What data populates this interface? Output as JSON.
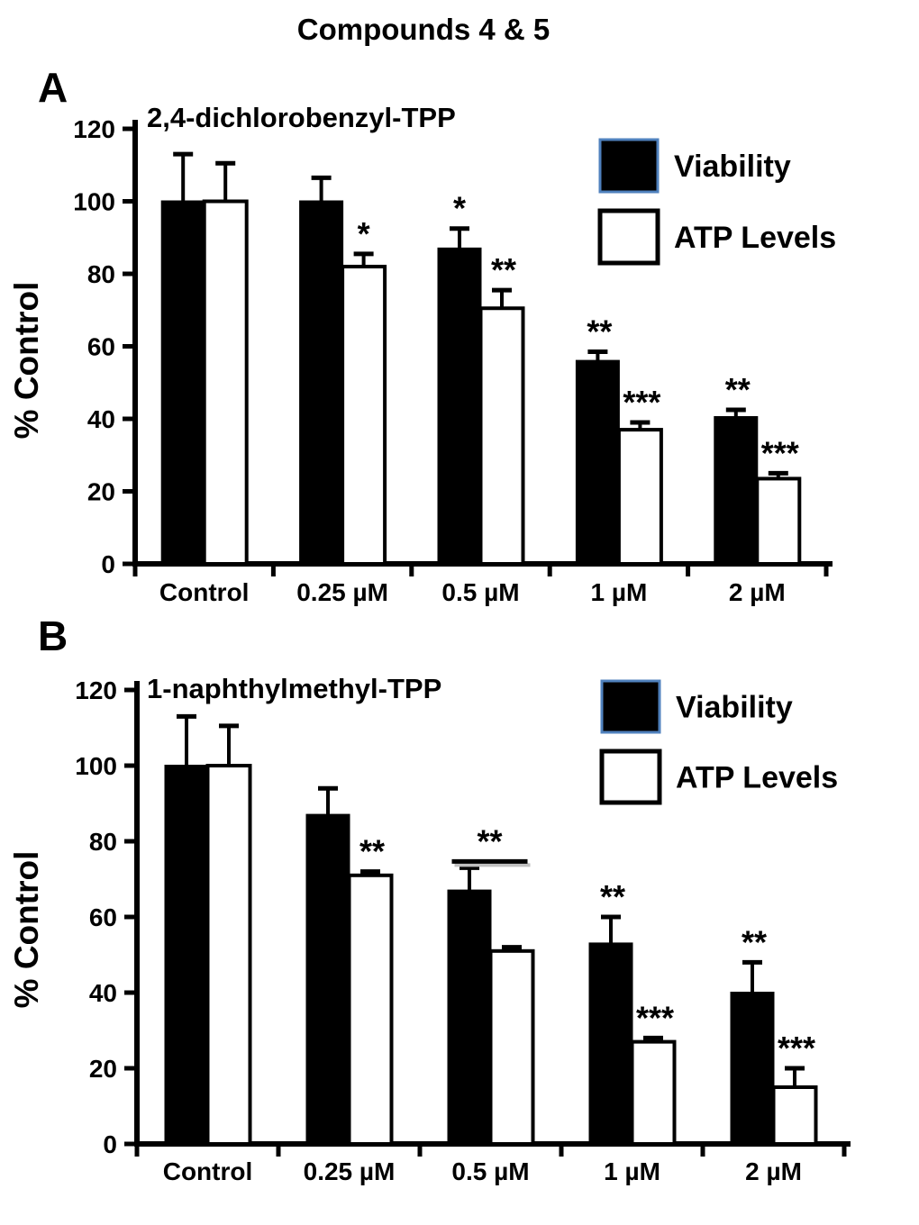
{
  "figure_title": "Compounds 4 & 5",
  "legend": {
    "viability_label": "Viability",
    "atp_label": "ATP Levels"
  },
  "colors": {
    "viability_fill": "#000000",
    "viability_swatch_border": "#4f81bd",
    "atp_fill": "#ffffff",
    "atp_border": "#000000",
    "axis": "#000000",
    "background": "#ffffff"
  },
  "chart_data": [
    {
      "panel": "A",
      "type": "bar",
      "title": "2,4-dichlorobenzyl-TPP",
      "ylabel": "% Control",
      "ylim": [
        0,
        120
      ],
      "ytick_step": 20,
      "yticks": [
        "0",
        "20",
        "40",
        "60",
        "80",
        "100",
        "120"
      ],
      "grid": false,
      "legend_position": "upper right",
      "categories": [
        "Control",
        "0.25 µM",
        "0.5 µM",
        "1 µM",
        "2 µM"
      ],
      "series": [
        {
          "name": "Viability",
          "values": [
            100,
            100,
            87,
            56,
            40.5
          ],
          "errors_plus": [
            13,
            6.5,
            5.5,
            2.5,
            2
          ],
          "sig": [
            "",
            "",
            "*",
            "**",
            "**"
          ]
        },
        {
          "name": "ATP Levels",
          "values": [
            100,
            82,
            70.5,
            37,
            23.5
          ],
          "errors_plus": [
            10.5,
            3.5,
            5,
            2,
            1.5
          ],
          "sig": [
            "",
            "*",
            "**",
            "***",
            "***"
          ]
        }
      ],
      "annotations": []
    },
    {
      "panel": "B",
      "type": "bar",
      "title": "1-naphthylmethyl-TPP",
      "ylabel": "% Control",
      "ylim": [
        0,
        120
      ],
      "ytick_step": 20,
      "yticks": [
        "0",
        "20",
        "40",
        "60",
        "80",
        "100",
        "120"
      ],
      "grid": false,
      "legend_position": "upper right",
      "categories": [
        "Control",
        "0.25 µM",
        "0.5 µM",
        "1 µM",
        "2 µM"
      ],
      "series": [
        {
          "name": "Viability",
          "values": [
            100,
            87,
            67,
            53,
            40
          ],
          "errors_plus": [
            13,
            7,
            6,
            7,
            8
          ],
          "sig": [
            "",
            "",
            "",
            "**",
            "**"
          ]
        },
        {
          "name": "ATP Levels",
          "values": [
            100,
            71,
            51,
            27,
            15
          ],
          "errors_plus": [
            10.5,
            1,
            1,
            1,
            5
          ],
          "sig": [
            "",
            "**",
            "",
            "***",
            "***"
          ]
        }
      ],
      "annotations": [
        {
          "type": "sig-bracket",
          "category_index": 2,
          "label": "**",
          "over_series": "Viability"
        }
      ]
    }
  ]
}
